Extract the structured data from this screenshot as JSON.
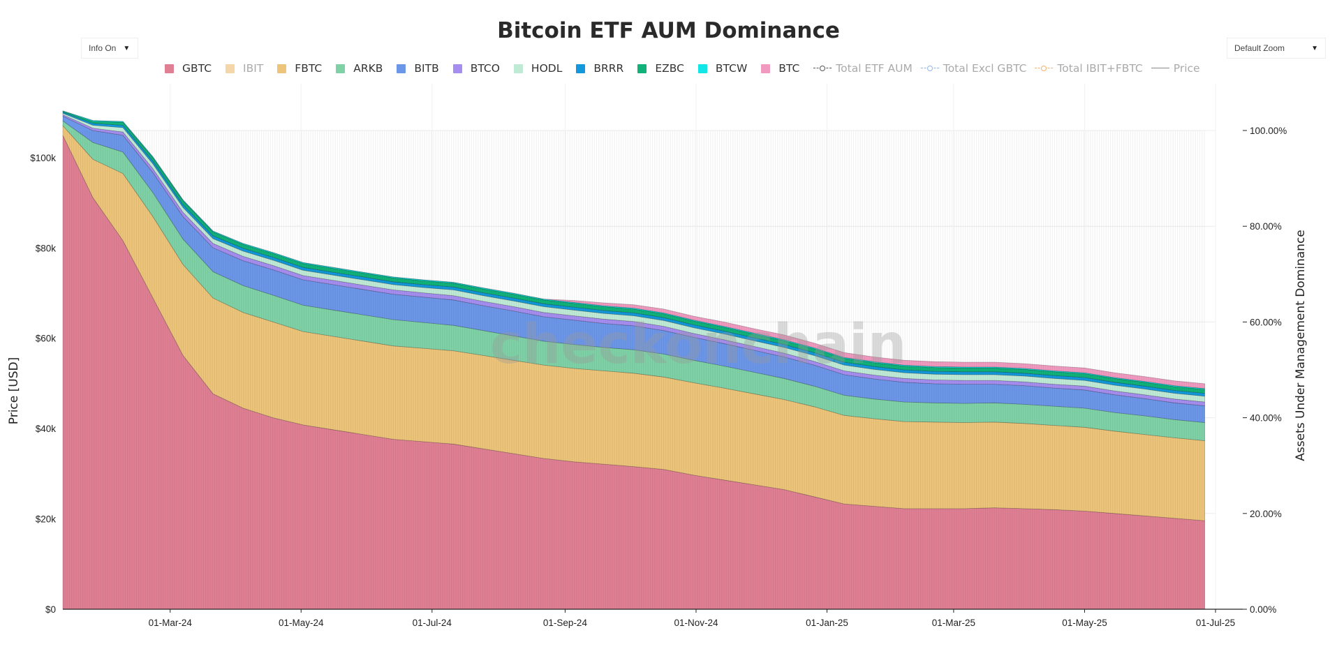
{
  "header": {
    "title": "Bitcoin ETF AUM Dominance"
  },
  "controls": {
    "info_label": "Info On",
    "zoom_label": "Default Zoom",
    "arrow": "▼"
  },
  "watermark": "checkonchain",
  "colors": {
    "GBTC": "#e07f94",
    "IBIT": "#f5d6a8",
    "FBTC": "#ecc47a",
    "ARKB": "#7fd1a6",
    "BITB": "#6c96e8",
    "BTCO": "#a58ef0",
    "HODL": "#bfead6",
    "BRRR": "#1399db",
    "EZBC": "#10b27a",
    "BTCW": "#12e6e6",
    "BTC": "#f09ac0",
    "Total ETF AUM": "#555555",
    "Total Excl GBTC": "#8fb8ea",
    "Total IBIT+FBTC": "#f6b26b",
    "Price": "#888888"
  },
  "chart_data": {
    "type": "area",
    "title": "Bitcoin ETF AUM Dominance",
    "ylabel_left": "Price [USD]",
    "ylabel_right": "Assets Under Management Dominance",
    "y_left_ticks": [
      "$0",
      "$20k",
      "$40k",
      "$60k",
      "$80k",
      "$100k"
    ],
    "y_left_range": [
      0,
      106000
    ],
    "y_right_ticks": [
      "0.00%",
      "20.00%",
      "40.00%",
      "60.00%",
      "80.00%",
      "100.00%"
    ],
    "y_right_range": [
      0,
      100
    ],
    "x_ticks": [
      "01-Mar-24",
      "01-May-24",
      "01-Jul-24",
      "01-Sep-24",
      "01-Nov-24",
      "01-Jan-25",
      "01-Mar-25",
      "01-May-25",
      "01-Jul-25"
    ],
    "x": [
      "2024-01-11",
      "2024-01-25",
      "2024-02-08",
      "2024-02-22",
      "2024-03-07",
      "2024-03-21",
      "2024-04-04",
      "2024-04-18",
      "2024-05-02",
      "2024-05-16",
      "2024-05-30",
      "2024-06-13",
      "2024-06-27",
      "2024-07-11",
      "2024-07-25",
      "2024-08-08",
      "2024-08-22",
      "2024-09-05",
      "2024-09-19",
      "2024-10-03",
      "2024-10-17",
      "2024-10-31",
      "2024-11-14",
      "2024-11-28",
      "2024-12-12",
      "2024-12-26",
      "2025-01-09",
      "2025-01-23",
      "2025-02-06",
      "2025-02-20",
      "2025-03-06",
      "2025-03-20",
      "2025-04-03",
      "2025-04-17",
      "2025-05-01",
      "2025-05-15",
      "2025-05-29",
      "2025-06-12",
      "2025-06-26"
    ],
    "legend": [
      "GBTC",
      "IBIT",
      "FBTC",
      "ARKB",
      "BITB",
      "BTCO",
      "HODL",
      "BRRR",
      "EZBC",
      "BTCW",
      "BTC",
      "Total ETF AUM",
      "Total Excl GBTC",
      "Total IBIT+FBTC",
      "Price"
    ],
    "legend_hidden": [
      "IBIT",
      "Total ETF AUM",
      "Total Excl GBTC",
      "Total IBIT+FBTC",
      "Price"
    ],
    "stack_order": [
      "GBTC",
      "FBTC",
      "ARKB",
      "BITB",
      "BTCO",
      "HODL",
      "BRRR",
      "EZBC",
      "BTCW",
      "BTC"
    ],
    "series": [
      {
        "name": "GBTC",
        "values": [
          99,
          86,
          77,
          65,
          53,
          45,
          42,
          40,
          38.5,
          37.5,
          36.5,
          35.5,
          35,
          34.5,
          33.5,
          32.5,
          31.5,
          30.8,
          30.3,
          29.8,
          29.2,
          28,
          27,
          26,
          25,
          23.5,
          22,
          21.5,
          21,
          21,
          21,
          21.2,
          21,
          20.8,
          20.5,
          20,
          19.5,
          19,
          18.5
        ]
      },
      {
        "name": "FBTC",
        "values": [
          2,
          8,
          14,
          17,
          19,
          20,
          20,
          20,
          19.5,
          19.5,
          19.5,
          19.5,
          19.5,
          19.5,
          19.5,
          19.5,
          19.5,
          19.5,
          19.5,
          19.5,
          19.3,
          19.3,
          19.2,
          19,
          18.8,
          18.8,
          18.5,
          18.3,
          18.2,
          18.1,
          18,
          17.9,
          17.8,
          17.6,
          17.5,
          17.2,
          17,
          16.8,
          16.7
        ]
      },
      {
        "name": "ARKB",
        "values": [
          1,
          3.5,
          4.5,
          5,
          5.3,
          5.5,
          5.6,
          5.6,
          5.5,
          5.5,
          5.5,
          5.5,
          5.4,
          5.3,
          5.2,
          5.1,
          5,
          5,
          4.9,
          4.9,
          4.8,
          4.7,
          4.6,
          4.5,
          4.4,
          4.3,
          4.2,
          4.1,
          4.1,
          4,
          4,
          4,
          4,
          4,
          4,
          3.9,
          3.9,
          3.8,
          3.8
        ]
      },
      {
        "name": "BITB",
        "values": [
          1,
          2.5,
          3.5,
          4.2,
          4.7,
          5,
          5.2,
          5.3,
          5.3,
          5.3,
          5.3,
          5.3,
          5.3,
          5.3,
          5.2,
          5.2,
          5.1,
          5.1,
          5,
          5,
          4.9,
          4.8,
          4.7,
          4.6,
          4.5,
          4.4,
          4.3,
          4.2,
          4.1,
          4,
          4,
          3.9,
          3.9,
          3.8,
          3.8,
          3.7,
          3.6,
          3.5,
          3.5
        ]
      },
      {
        "name": "BTCO",
        "values": [
          0.3,
          0.5,
          0.7,
          0.8,
          0.9,
          0.9,
          0.9,
          0.9,
          0.9,
          0.9,
          0.9,
          0.9,
          0.9,
          0.9,
          0.9,
          0.9,
          0.9,
          0.9,
          0.9,
          0.9,
          0.9,
          0.8,
          0.8,
          0.8,
          0.8,
          0.8,
          0.8,
          0.8,
          0.8,
          0.8,
          0.8,
          0.8,
          0.8,
          0.8,
          0.8,
          0.8,
          0.8,
          0.8,
          0.8
        ]
      },
      {
        "name": "HODL",
        "values": [
          0.3,
          0.6,
          0.9,
          1,
          1,
          1,
          1.1,
          1.1,
          1.1,
          1.1,
          1.1,
          1.1,
          1.1,
          1.2,
          1.2,
          1.2,
          1.2,
          1.2,
          1.2,
          1.2,
          1.2,
          1.2,
          1.2,
          1.2,
          1.2,
          1.2,
          1.2,
          1.2,
          1.2,
          1.2,
          1.2,
          1.2,
          1.2,
          1.2,
          1.2,
          1.2,
          1.2,
          1.2,
          1.2
        ]
      },
      {
        "name": "BRRR",
        "values": [
          0.2,
          0.4,
          0.5,
          0.6,
          0.6,
          0.6,
          0.6,
          0.6,
          0.6,
          0.6,
          0.6,
          0.6,
          0.6,
          0.6,
          0.6,
          0.6,
          0.6,
          0.6,
          0.6,
          0.6,
          0.6,
          0.6,
          0.6,
          0.6,
          0.6,
          0.6,
          0.6,
          0.6,
          0.6,
          0.6,
          0.6,
          0.6,
          0.6,
          0.6,
          0.6,
          0.6,
          0.6,
          0.6,
          0.6
        ]
      },
      {
        "name": "EZBC",
        "values": [
          0.2,
          0.4,
          0.6,
          0.7,
          0.8,
          0.8,
          0.8,
          0.8,
          0.8,
          0.8,
          0.8,
          0.8,
          0.8,
          0.8,
          0.8,
          0.8,
          0.8,
          0.8,
          0.8,
          0.8,
          0.8,
          0.8,
          0.8,
          0.8,
          0.8,
          0.8,
          0.8,
          0.8,
          0.8,
          0.8,
          0.8,
          0.8,
          0.8,
          0.8,
          0.8,
          0.8,
          0.8,
          0.8,
          0.8
        ]
      },
      {
        "name": "BTCW",
        "values": [
          0.1,
          0.2,
          0.2,
          0.2,
          0.2,
          0.2,
          0.2,
          0.2,
          0.2,
          0.2,
          0.2,
          0.2,
          0.2,
          0.2,
          0.2,
          0.2,
          0.2,
          0.2,
          0.2,
          0.2,
          0.2,
          0.2,
          0.2,
          0.2,
          0.2,
          0.2,
          0.2,
          0.2,
          0.2,
          0.2,
          0.2,
          0.2,
          0.2,
          0.2,
          0.2,
          0.2,
          0.2,
          0.2,
          0.2
        ]
      },
      {
        "name": "BTC",
        "values": [
          0,
          0,
          0,
          0,
          0,
          0,
          0,
          0,
          0,
          0,
          0,
          0,
          0,
          0,
          0,
          0,
          0,
          0.4,
          0.6,
          0.7,
          0.8,
          0.8,
          0.9,
          0.9,
          1,
          1,
          1,
          1,
          1,
          1,
          1,
          1,
          1,
          1,
          1,
          1,
          1,
          1,
          1
        ]
      }
    ]
  }
}
